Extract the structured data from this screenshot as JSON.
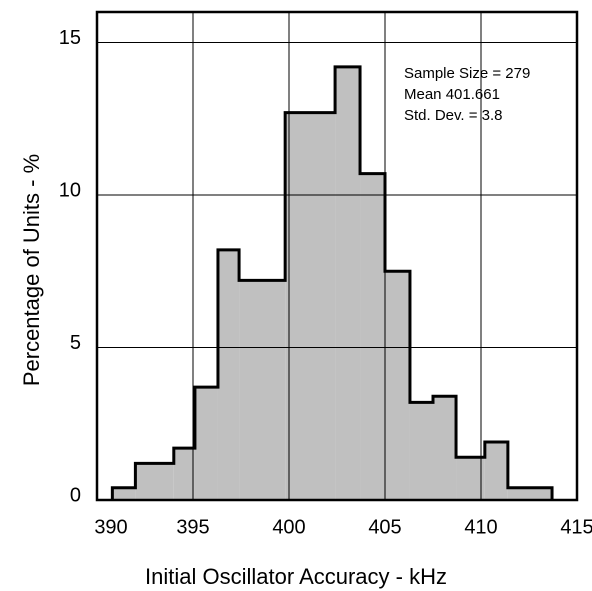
{
  "chart_data": {
    "type": "histogram",
    "x_label": "Initial Oscillator Accuracy - kHz",
    "y_label": "Percentage of Units - %",
    "annotations": [
      "Sample Size = 279",
      "Mean 401.661",
      "Std. Dev. = 3.8"
    ],
    "bins": [
      390.8,
      392,
      394,
      395.1,
      396.3,
      397.4,
      399.8,
      402.4,
      403.7,
      405,
      406.3,
      407.5,
      408.7,
      410.2,
      411.4,
      413.7
    ],
    "values": [
      0.4,
      1.2,
      1.7,
      3.7,
      8.2,
      7.2,
      12.7,
      14.2,
      10.7,
      7.5,
      3.2,
      3.4,
      1.4,
      1.9,
      0.4
    ],
    "color": "#c0c0c0",
    "xlim": [
      390,
      415
    ],
    "xticks": [
      390,
      395,
      400,
      405,
      410,
      415
    ],
    "ylim": [
      0,
      16
    ],
    "yticks": [
      0,
      5,
      10,
      15
    ],
    "grid": true
  }
}
